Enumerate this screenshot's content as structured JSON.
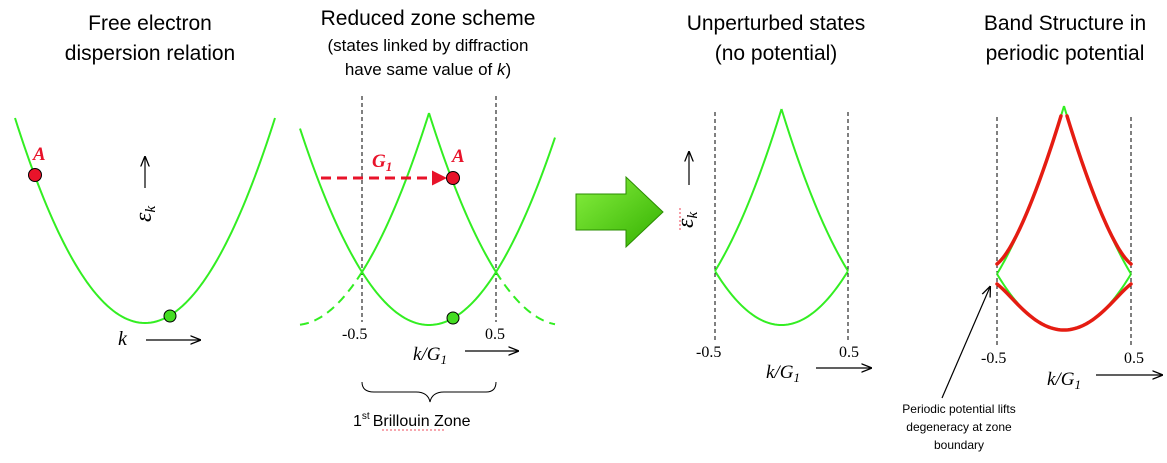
{
  "panels": {
    "free": {
      "title_line1": "Free electron",
      "title_line2": "dispersion relation",
      "k_label": "k",
      "energy_label": "ε",
      "energy_sub": "k",
      "point_label": "A"
    },
    "reduced": {
      "title_line1": "Reduced zone scheme",
      "subtitle_line1": "(states linked by diffraction",
      "subtitle_line2_pre": "have same value of ",
      "subtitle_line2_k": "k",
      "subtitle_line2_post": ")",
      "left_boundary": "-0.5",
      "right_boundary": "0.5",
      "x_label": "k/G",
      "x_label_sub": "1",
      "vector_label": "G",
      "vector_sub": "1",
      "point_label": "A",
      "zone_prefix": "1",
      "zone_sup": "st",
      "zone_word": "Brillouin",
      "zone_suffix": " Zone"
    },
    "unperturbed": {
      "title_line1": "Unperturbed states",
      "title_line2": "(no potential)",
      "energy_label": "ε",
      "energy_sub": "k",
      "left_boundary": "-0.5",
      "right_boundary": "0.5",
      "x_label": "k/G",
      "x_label_sub": "1"
    },
    "band": {
      "title_line1": "Band Structure in",
      "title_line2": "periodic potential",
      "left_boundary": "-0.5",
      "right_boundary": "0.5",
      "x_label": "k/G",
      "x_label_sub": "1",
      "note_line1": "Periodic potential lifts",
      "note_line2": "degeneracy at zone",
      "note_line3": "boundary"
    }
  },
  "colors": {
    "free_band": "#33ee22",
    "perturbed_band": "#e51c12",
    "arrow_fill": "#55dd11",
    "highlight": "#e8132a"
  }
}
